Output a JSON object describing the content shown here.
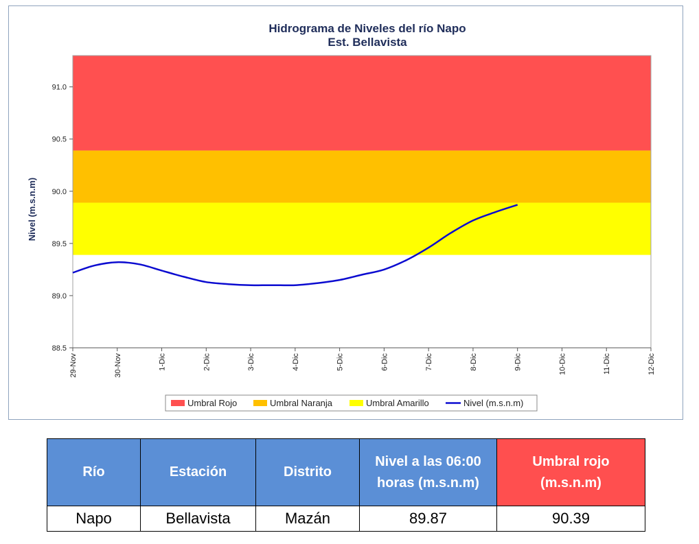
{
  "chart_data": {
    "type": "line",
    "title": "Hidrograma de Niveles del río Napo",
    "subtitle": "Est. Bellavista",
    "ylabel": "Nivel (m.s.n.m)",
    "xlabel": "",
    "ylim": [
      88.5,
      91.3
    ],
    "yticks": [
      "88.5",
      "89.0",
      "89.5",
      "90.0",
      "90.5",
      "91.0"
    ],
    "ytick_values": [
      88.5,
      89.0,
      89.5,
      90.0,
      90.5,
      91.0
    ],
    "categories": [
      "29-Nov",
      "30-Nov",
      "1-Dic",
      "2-Dic",
      "3-Dic",
      "4-Dic",
      "5-Dic",
      "6-Dic",
      "7-Dic",
      "8-Dic",
      "9-Dic",
      "10-Dic",
      "11-Dic",
      "12-Dic"
    ],
    "bands": [
      {
        "name": "Umbral Rojo",
        "from": 90.39,
        "to": 91.3,
        "color": "#ff5050"
      },
      {
        "name": "Umbral Naranja",
        "from": 89.89,
        "to": 90.39,
        "color": "#ffc000"
      },
      {
        "name": "Umbral Amarillo",
        "from": 89.39,
        "to": 89.89,
        "color": "#ffff00"
      }
    ],
    "series": [
      {
        "name": "Nivel (m.s.n.m)",
        "color": "#0b0bd0",
        "x": [
          0,
          0.5,
          1,
          1.5,
          2,
          2.5,
          3,
          3.5,
          4,
          4.5,
          5,
          5.5,
          6,
          6.5,
          7,
          7.5,
          8,
          8.5,
          9,
          9.5,
          10
        ],
        "values": [
          89.22,
          89.29,
          89.32,
          89.3,
          89.24,
          89.18,
          89.13,
          89.11,
          89.1,
          89.1,
          89.1,
          89.12,
          89.15,
          89.2,
          89.25,
          89.34,
          89.46,
          89.6,
          89.72,
          89.8,
          89.87
        ]
      }
    ],
    "legend": [
      "Umbral Rojo",
      "Umbral Naranja",
      "Umbral Amarillo",
      "Nivel (m.s.n.m)"
    ],
    "legend_position": "bottom",
    "grid": false
  },
  "table": {
    "headers": [
      "Río",
      "Estación",
      "Distrito",
      "Nivel a las 06:00 horas (m.s.n.m)",
      "Umbral rojo (m.s.n.m)"
    ],
    "row": [
      "Napo",
      "Bellavista",
      "Mazán",
      "89.87",
      "90.39"
    ]
  },
  "colors": {
    "header_blue": "#5b8fd6",
    "header_red": "#ff4f4f",
    "title": "#1f2d5a"
  }
}
